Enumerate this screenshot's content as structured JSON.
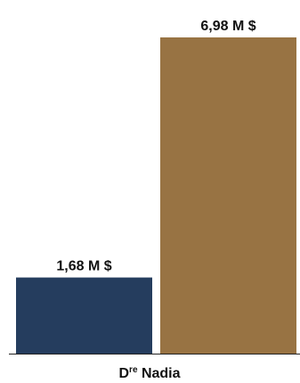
{
  "chart_data": {
    "type": "bar",
    "categories": [
      "Dre Nadia"
    ],
    "category_label": {
      "base": "D",
      "superscript": "re",
      "rest": " Nadia"
    },
    "series": [
      {
        "values": [
          1.68
        ],
        "color": "#253d5e"
      },
      {
        "values": [
          6.98
        ],
        "color": "#987343"
      }
    ],
    "data_labels": [
      "1,68 M $",
      "6,98 M $"
    ],
    "title": "",
    "xlabel": "",
    "ylabel": "",
    "ylim": [
      0,
      6.98
    ],
    "grid": false,
    "legend": "none"
  }
}
